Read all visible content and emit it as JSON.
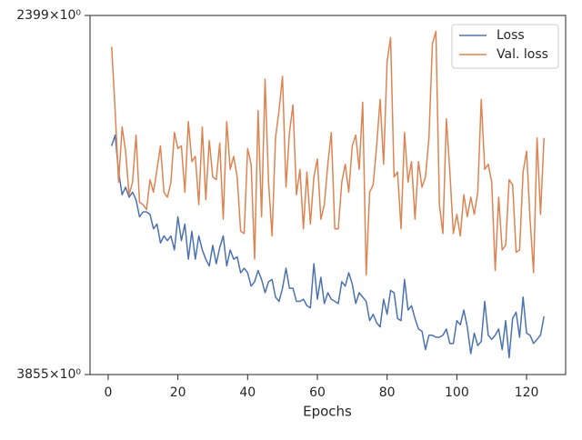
{
  "chart_data": {
    "type": "line",
    "xlabel": "Epochs",
    "x": [
      1,
      2,
      3,
      4,
      5,
      6,
      7,
      8,
      9,
      10,
      11,
      12,
      13,
      14,
      15,
      16,
      17,
      18,
      19,
      20,
      21,
      22,
      23,
      24,
      25,
      26,
      27,
      28,
      29,
      30,
      31,
      32,
      33,
      34,
      35,
      36,
      37,
      38,
      39,
      40,
      41,
      42,
      43,
      44,
      45,
      46,
      47,
      48,
      49,
      50,
      51,
      52,
      53,
      54,
      55,
      56,
      57,
      58,
      59,
      60,
      61,
      62,
      63,
      64,
      65,
      66,
      67,
      68,
      69,
      70,
      71,
      72,
      73,
      74,
      75,
      76,
      77,
      78,
      79,
      80,
      81,
      82,
      83,
      84,
      85,
      86,
      87,
      88,
      89,
      90,
      91,
      92,
      93,
      94,
      95,
      96,
      97,
      98,
      99,
      100,
      101,
      102,
      103,
      104,
      105,
      106,
      107,
      108,
      109,
      110,
      111,
      112,
      113,
      114,
      115,
      116,
      117,
      118,
      119,
      120,
      121,
      122,
      123,
      124,
      125
    ],
    "series": [
      {
        "name": "Loss",
        "color": "#4c72b0",
        "values": [
          2850,
          2810,
          2950,
          3040,
          3010,
          3050,
          3030,
          3060,
          3130,
          3110,
          3110,
          3120,
          3180,
          3160,
          3240,
          3210,
          3230,
          3210,
          3270,
          3130,
          3230,
          3160,
          3310,
          3190,
          3310,
          3210,
          3270,
          3310,
          3340,
          3250,
          3330,
          3260,
          3210,
          3340,
          3270,
          3310,
          3300,
          3370,
          3350,
          3370,
          3430,
          3410,
          3360,
          3400,
          3460,
          3410,
          3400,
          3480,
          3500,
          3440,
          3350,
          3440,
          3440,
          3500,
          3500,
          3490,
          3520,
          3530,
          3330,
          3490,
          3390,
          3510,
          3460,
          3490,
          3500,
          3510,
          3410,
          3430,
          3370,
          3420,
          3510,
          3460,
          3480,
          3500,
          3590,
          3560,
          3600,
          3620,
          3490,
          3560,
          3450,
          3460,
          3580,
          3590,
          3400,
          3540,
          3520,
          3580,
          3630,
          3640,
          3730,
          3660,
          3660,
          3670,
          3670,
          3660,
          3630,
          3700,
          3700,
          3590,
          3610,
          3540,
          3620,
          3750,
          3650,
          3710,
          3690,
          3500,
          3660,
          3680,
          3660,
          3630,
          3730,
          3590,
          3770,
          3580,
          3550,
          3670,
          3480,
          3650,
          3660,
          3700,
          3680,
          3660,
          3570
        ]
      },
      {
        "name": "Val. loss",
        "color": "#dd8452",
        "values": [
          2500,
          2720,
          2990,
          2780,
          2870,
          3040,
          2990,
          2810,
          3070,
          3080,
          3100,
          2980,
          3030,
          2940,
          2850,
          3030,
          3050,
          2990,
          2800,
          2860,
          2850,
          3030,
          2760,
          2910,
          2890,
          3080,
          2780,
          3060,
          2830,
          2970,
          2980,
          2840,
          3140,
          2760,
          2940,
          2890,
          2970,
          3190,
          3200,
          2860,
          2920,
          3310,
          2720,
          3130,
          2610,
          2990,
          3210,
          2820,
          2720,
          2600,
          3010,
          2800,
          2700,
          3040,
          2940,
          3180,
          2950,
          3160,
          2970,
          2900,
          3140,
          3080,
          2920,
          2800,
          3180,
          3180,
          2990,
          2920,
          3030,
          2850,
          2810,
          2940,
          2690,
          3380,
          3030,
          3000,
          2850,
          2680,
          2920,
          2550,
          2470,
          2970,
          2950,
          3180,
          2800,
          2990,
          2910,
          3140,
          2910,
          3010,
          2970,
          2820,
          2490,
          2450,
          3080,
          3200,
          2750,
          2950,
          3200,
          3120,
          3210,
          3040,
          3130,
          3050,
          3120,
          3030,
          2680,
          2940,
          2920,
          2990,
          3360,
          3050,
          3270,
          3250,
          2980,
          3000,
          3280,
          3270,
          2950,
          2870,
          3140,
          3370,
          2820,
          3120,
          2820
        ]
      }
    ],
    "xlim": [
      -5.2,
      131.2
    ],
    "xticks": [
      0,
      20,
      40,
      60,
      80,
      100,
      120
    ],
    "ylim": [
      3855,
      2399
    ],
    "yscale": "log",
    "yticks": [
      {
        "value": 3855,
        "label": "3855×10⁰"
      },
      {
        "value": 2399,
        "label": "2399×10⁰"
      }
    ],
    "legend": "upper right"
  }
}
